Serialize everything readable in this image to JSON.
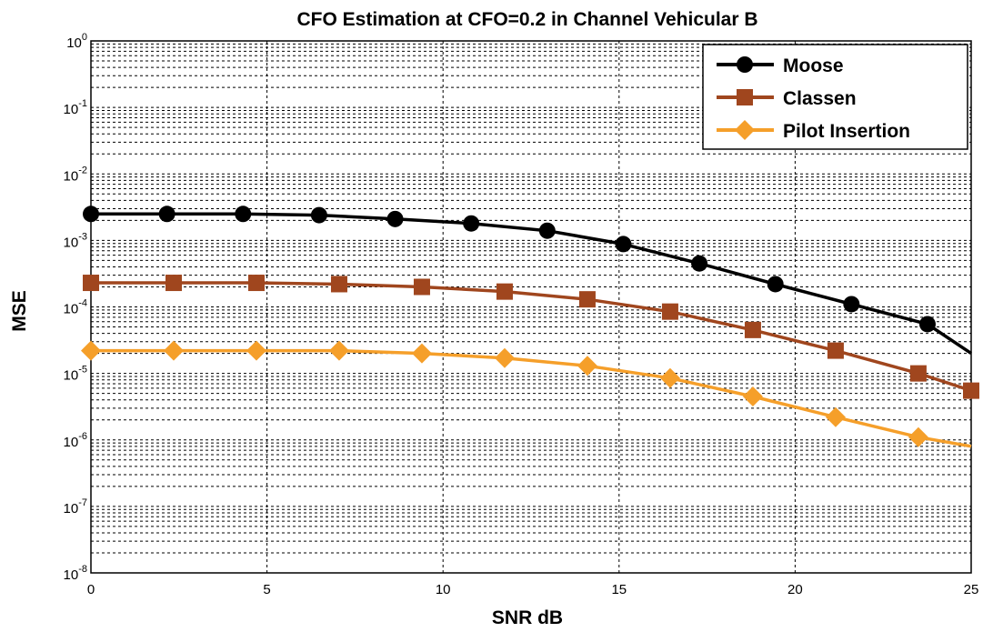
{
  "chart_data": {
    "type": "line",
    "title": "CFO Estimation at CFO=0.2 in Channel Vehicular B",
    "xlabel": "SNR dB",
    "ylabel": "MSE",
    "xlim": [
      0,
      25
    ],
    "ylim": [
      1e-08,
      1
    ],
    "yscale": "log",
    "grid": true,
    "legend_position": "top-right",
    "x_ticks": [
      "0",
      "5",
      "10",
      "15",
      "20",
      "25"
    ],
    "y_ticks": [
      {
        "base": "10",
        "exp": "0",
        "value": 1
      },
      {
        "base": "10",
        "exp": "-1",
        "value": 0.1
      },
      {
        "base": "10",
        "exp": "-2",
        "value": 0.01
      },
      {
        "base": "10",
        "exp": "-3",
        "value": 0.001
      },
      {
        "base": "10",
        "exp": "-4",
        "value": 0.0001
      },
      {
        "base": "10",
        "exp": "-5",
        "value": 1e-05
      },
      {
        "base": "10",
        "exp": "-6",
        "value": 1e-06
      },
      {
        "base": "10",
        "exp": "-7",
        "value": 1e-07
      },
      {
        "base": "10",
        "exp": "-8",
        "value": 1e-08
      }
    ],
    "series": [
      {
        "name": "Moose",
        "color": "#000000",
        "marker": "circle",
        "x": [
          0,
          2.16,
          4.32,
          6.48,
          8.64,
          10.8,
          12.96,
          15.12,
          17.28,
          19.44,
          21.6,
          23.76,
          25
        ],
        "y": [
          0.0025,
          0.0025,
          0.0025,
          0.0024,
          0.0021,
          0.0018,
          0.0014,
          0.00088,
          0.00045,
          0.00022,
          0.00011,
          5.5e-05,
          2e-05
        ],
        "marker_mask": [
          true,
          true,
          true,
          true,
          true,
          true,
          true,
          true,
          true,
          true,
          true,
          true,
          false
        ]
      },
      {
        "name": "Classen",
        "color": "#A0461E",
        "marker": "square",
        "x": [
          0,
          2.35,
          4.7,
          7.05,
          9.4,
          11.75,
          14.1,
          16.45,
          18.8,
          21.15,
          23.5,
          25
        ],
        "y": [
          0.00023,
          0.00023,
          0.00023,
          0.00022,
          0.0002,
          0.00017,
          0.00013,
          8.5e-05,
          4.5e-05,
          2.2e-05,
          1e-05,
          5.5e-06
        ],
        "marker_mask": [
          true,
          true,
          true,
          true,
          true,
          true,
          true,
          true,
          true,
          true,
          true,
          true
        ]
      },
      {
        "name": "Pilot Insertion",
        "color": "#F59F2A",
        "marker": "diamond",
        "x": [
          0,
          2.35,
          4.7,
          7.05,
          9.4,
          11.75,
          14.1,
          16.45,
          18.8,
          21.15,
          23.5,
          25
        ],
        "y": [
          2.2e-05,
          2.2e-05,
          2.2e-05,
          2.2e-05,
          2e-05,
          1.7e-05,
          1.3e-05,
          8.5e-06,
          4.5e-06,
          2.2e-06,
          1.1e-06,
          8e-07
        ],
        "marker_mask": [
          true,
          true,
          true,
          true,
          true,
          true,
          true,
          true,
          true,
          true,
          true,
          false
        ]
      }
    ]
  }
}
